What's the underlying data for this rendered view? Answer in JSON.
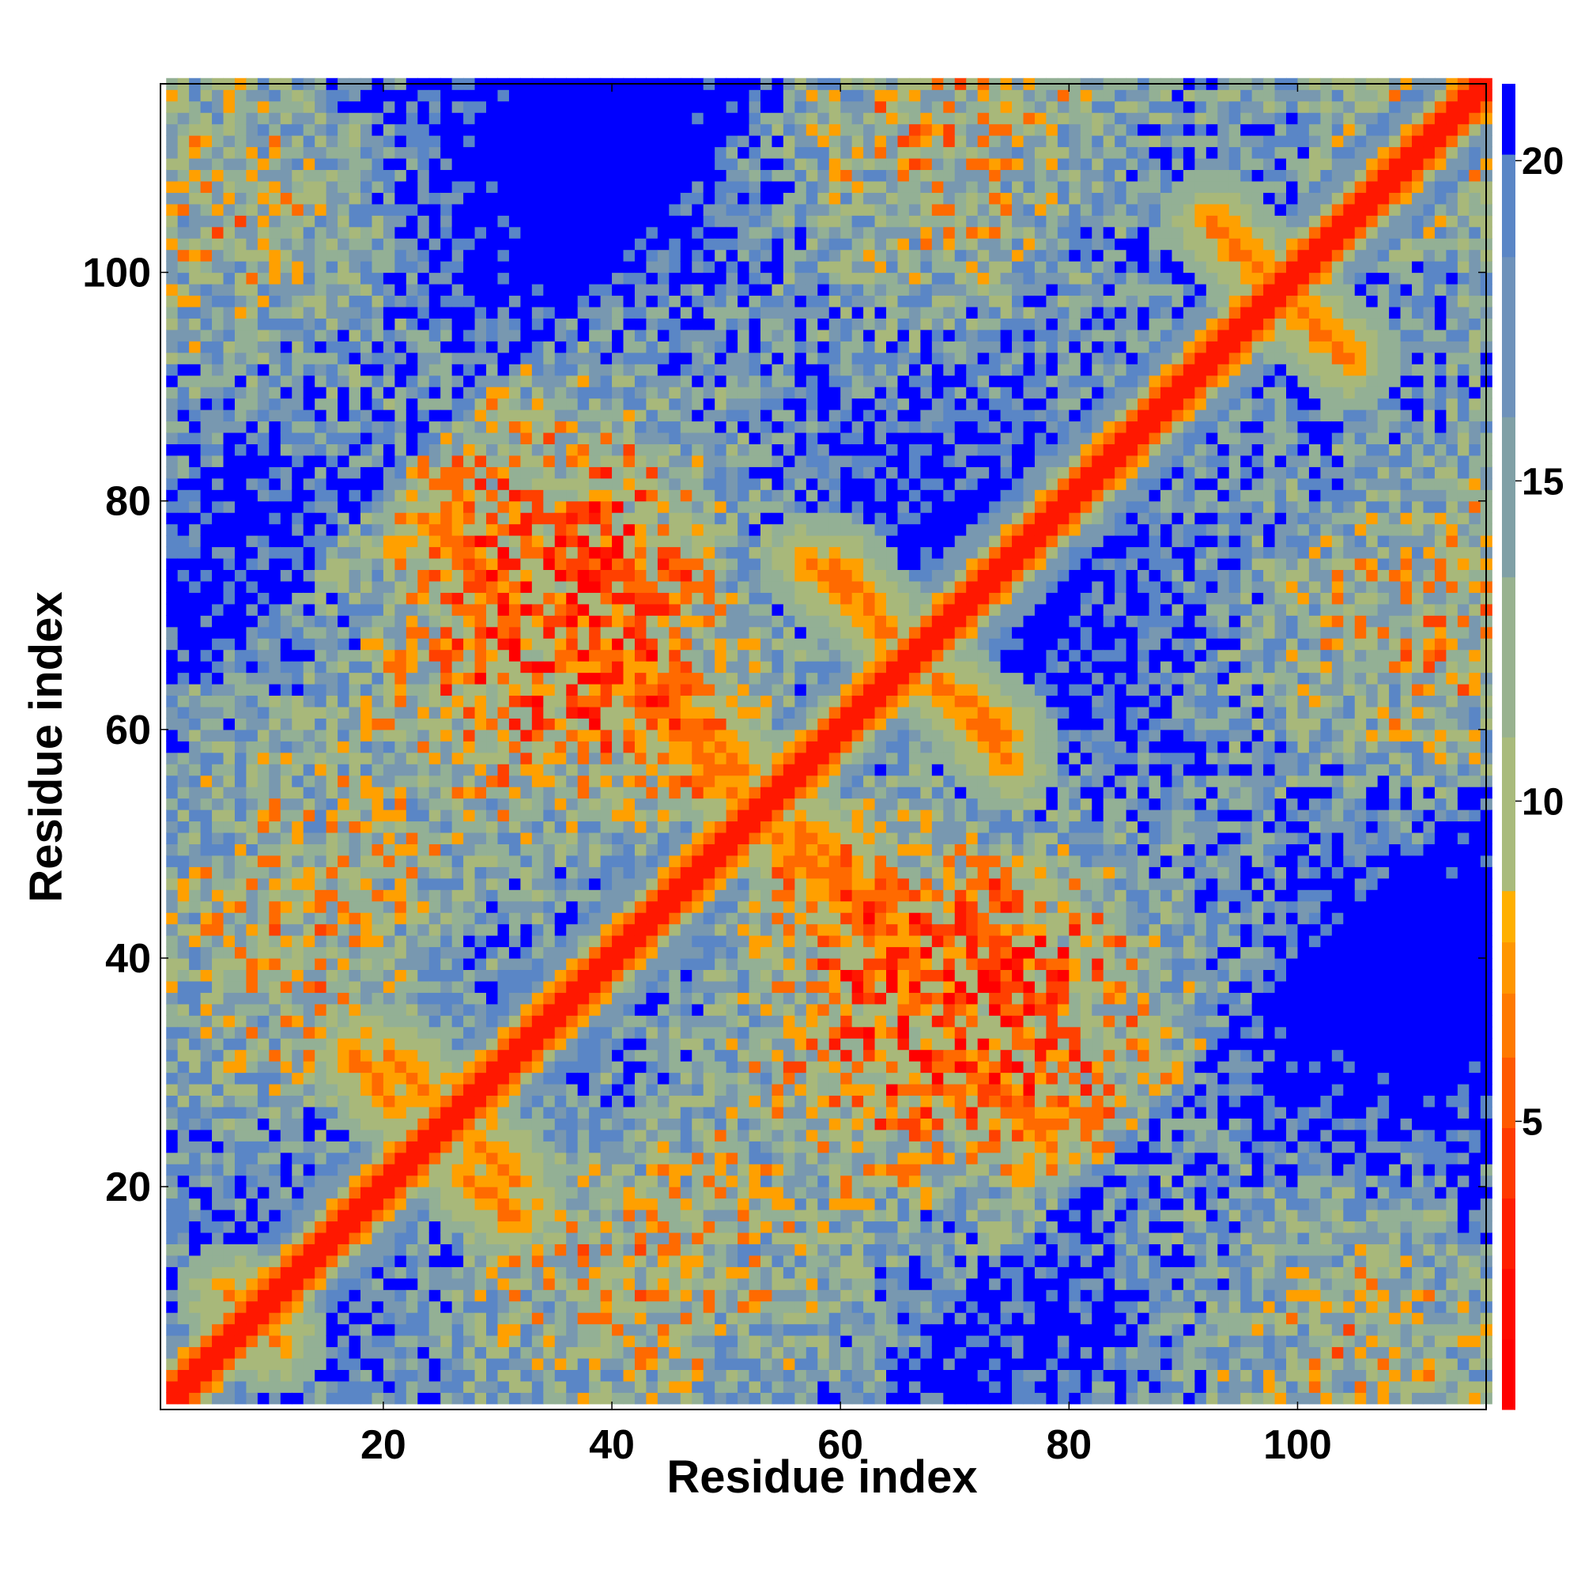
{
  "chart_data": {
    "type": "heatmap",
    "title": "",
    "xlabel": "Residue index",
    "ylabel": "Residue index",
    "n_residues": 116,
    "xlim": [
      1,
      116
    ],
    "ylim": [
      1,
      116
    ],
    "x_ticks": [
      20,
      40,
      60,
      80,
      100
    ],
    "y_ticks": [
      20,
      40,
      60,
      80,
      100
    ],
    "x_tick_labels": [
      "20",
      "40",
      "60",
      "80",
      "100"
    ],
    "y_tick_labels": [
      "20",
      "40",
      "60",
      "80",
      "100"
    ],
    "colorbar": {
      "range": [
        0.5,
        21.2
      ],
      "ticks": [
        5,
        10,
        15,
        20
      ],
      "tick_labels": [
        "5",
        "10",
        "15",
        "20"
      ],
      "stops": [
        {
          "value": 0.5,
          "color": "#ff0000"
        },
        {
          "value": 2.5,
          "color": "#ff1800"
        },
        {
          "value": 4.0,
          "color": "#ff4000"
        },
        {
          "value": 5.5,
          "color": "#ff6a00"
        },
        {
          "value": 7.0,
          "color": "#ff9000"
        },
        {
          "value": 8.0,
          "color": "#ffaa00"
        },
        {
          "value": 8.5,
          "color": "#a8b87a"
        },
        {
          "value": 11.0,
          "color": "#9bb48e"
        },
        {
          "value": 14.0,
          "color": "#7f9ea6"
        },
        {
          "value": 17.0,
          "color": "#6b8fbf"
        },
        {
          "value": 20.0,
          "color": "#5a86c6"
        },
        {
          "value": 20.1,
          "color": "#0000ff"
        },
        {
          "value": 21.2,
          "color": "#0000ff"
        }
      ]
    },
    "description_of_values": "Symmetric residue-residue distance map; near-diagonal band is red (distance < 5); off-diagonal antiparallel contact stripes are orange; regions beyond ~20 are blue.",
    "contact_stripes": [
      {
        "from": [
          27,
          20
        ],
        "to": [
          31,
          17
        ]
      },
      {
        "from": [
          20,
          31
        ],
        "to": [
          27,
          25
        ]
      },
      {
        "from": [
          39,
          66
        ],
        "to": [
          55,
          53
        ]
      },
      {
        "from": [
          53,
          55
        ],
        "to": [
          66,
          38
        ]
      },
      {
        "from": [
          54,
          50
        ],
        "to": [
          63,
          42
        ]
      },
      {
        "from": [
          67,
          65
        ],
        "to": [
          74,
          59
        ]
      },
      {
        "from": [
          57,
          74
        ],
        "to": [
          66,
          66
        ]
      },
      {
        "from": [
          25,
          77
        ],
        "to": [
          30,
          71
        ]
      },
      {
        "from": [
          71,
          30
        ],
        "to": [
          77,
          24
        ]
      },
      {
        "from": [
          92,
          104
        ],
        "to": [
          98,
          98
        ]
      },
      {
        "from": [
          98,
          97
        ],
        "to": [
          104,
          92
        ]
      },
      {
        "from": [
          6,
          10
        ],
        "to": [
          10,
          6
        ]
      }
    ]
  }
}
